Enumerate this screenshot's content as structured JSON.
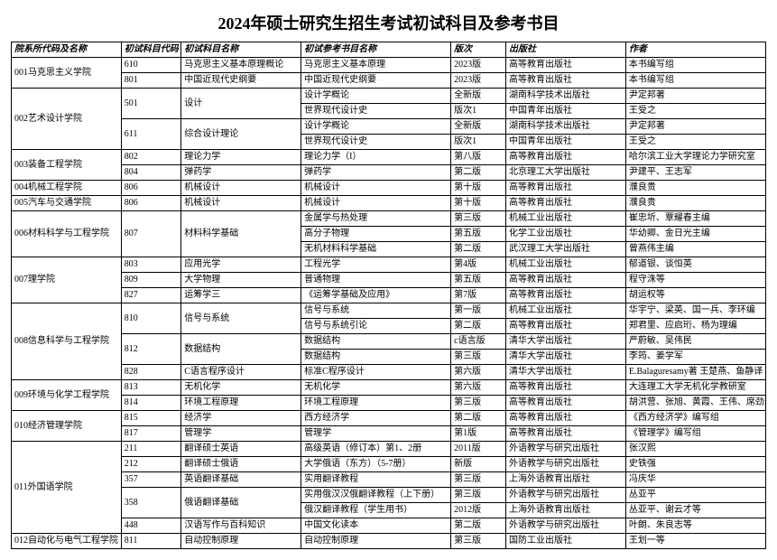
{
  "title": "2024年硕士研究生招生考试初试科目及参考书目",
  "headers": [
    "院系所代码及名称",
    "初试科目代码",
    "初试科目名称",
    "初试参考书目名称",
    "版次",
    "出版社",
    "作者"
  ],
  "colors": {
    "border": "#000000",
    "bg": "#ffffff",
    "text": "#000000"
  },
  "font": {
    "title_size": 18,
    "cell_size": 10,
    "family": "SimSun"
  },
  "rows": [
    {
      "dept": "001马克思主义学院",
      "dept_span": 2,
      "code": "610",
      "code_span": 1,
      "subj": "马克思主义基本原理概论",
      "subj_span": 1,
      "book": "马克思主义基本原理",
      "ed": "2023版",
      "pub": "高等教育出版社",
      "auth": "本书编写组"
    },
    {
      "code": "801",
      "code_span": 1,
      "subj": "中国近现代史纲要",
      "subj_span": 1,
      "book": "中国近现代史纲要",
      "ed": "2023版",
      "pub": "高等教育出版社",
      "auth": "本书编写组"
    },
    {
      "dept": "002艺术设计学院",
      "dept_span": 4,
      "code": "501",
      "code_span": 2,
      "subj": "设计",
      "subj_span": 2,
      "book": "设计学概论",
      "ed": "全新版",
      "pub": "湖南科学技术出版社",
      "auth": "尹定邦著"
    },
    {
      "book": "世界现代设计史",
      "ed": "版次1",
      "pub": "中国青年出版社",
      "auth": "王受之"
    },
    {
      "code": "611",
      "code_span": 2,
      "subj": "综合设计理论",
      "subj_span": 2,
      "book": "设计学概论",
      "ed": "全新版",
      "pub": "湖南科学技术出版社",
      "auth": "尹定邦著"
    },
    {
      "book": "世界现代设计史",
      "ed": "版次1",
      "pub": "中国青年出版社",
      "auth": "王受之"
    },
    {
      "dept": "003装备工程学院",
      "dept_span": 2,
      "code": "802",
      "code_span": 1,
      "subj": "理论力学",
      "subj_span": 1,
      "book": "理论力学（I）",
      "ed": "第八版",
      "pub": "高等教育出版社",
      "auth": "哈尔滨工业大学理论力学研究室"
    },
    {
      "code": "804",
      "code_span": 1,
      "subj": "弹药学",
      "subj_span": 1,
      "book": "弹药学",
      "ed": "第二版",
      "pub": "北京理工大学出版社",
      "auth": "尹建平、王志军"
    },
    {
      "dept": "004机械工程学院",
      "dept_span": 1,
      "code": "806",
      "code_span": 1,
      "subj": "机械设计",
      "subj_span": 1,
      "book": "机械设计",
      "ed": "第十版",
      "pub": "高等教育出版社",
      "auth": "濮良贵"
    },
    {
      "dept": "005汽车与交通学院",
      "dept_span": 1,
      "code": "806",
      "code_span": 1,
      "subj": "机械设计",
      "subj_span": 1,
      "book": "机械设计",
      "ed": "第十版",
      "pub": "高等教育出版社",
      "auth": "濮良贵"
    },
    {
      "dept": "006材料科学与工程学院",
      "dept_span": 3,
      "code": "807",
      "code_span": 3,
      "subj": "材料科学基础",
      "subj_span": 3,
      "book": "金属学与热处理",
      "ed": "第三版",
      "pub": "机械工业出版社",
      "auth": "崔忠圻、覃耀春主编"
    },
    {
      "book": "高分子物理",
      "ed": "第五版",
      "pub": "化学工业出版社",
      "auth": "华幼卿、金日光主编"
    },
    {
      "book": "无机材料科学基础",
      "ed": "第二版",
      "pub": "武汉理工大学出版社",
      "auth": "曾燕伟主编"
    },
    {
      "dept": "007理学院",
      "dept_span": 3,
      "code": "803",
      "code_span": 1,
      "subj": "应用光学",
      "subj_span": 1,
      "book": "工程光学",
      "ed": "第4版",
      "pub": "机械工业出版社",
      "auth": "郁道银、谈恒英"
    },
    {
      "code": "809",
      "code_span": 1,
      "subj": "大学物理",
      "subj_span": 1,
      "book": "普通物理",
      "ed": "第五版",
      "pub": "高等教育出版社",
      "auth": "程守洙等"
    },
    {
      "code": "827",
      "code_span": 1,
      "subj": "运筹学三",
      "subj_span": 1,
      "book": "《运筹学基础及应用》",
      "ed": "第7版",
      "pub": "高等教育出版社",
      "auth": "胡运权等"
    },
    {
      "dept": "008信息科学与工程学院",
      "dept_span": 5,
      "code": "810",
      "code_span": 2,
      "subj": "信号与系统",
      "subj_span": 2,
      "book": "信号与系统",
      "ed": "第一版",
      "pub": "机械工业出版社",
      "auth": "华宇宁、梁英、国一兵、李环编"
    },
    {
      "book": "信号与系统引论",
      "ed": "第二版",
      "pub": "高等教育出版社",
      "auth": "郑君里、应启珩、杨为理编"
    },
    {
      "code": "812",
      "code_span": 2,
      "subj": "数据结构",
      "subj_span": 2,
      "book": "数据结构",
      "ed": "c语言版",
      "pub": "清华大学出版社",
      "auth": "严蔚敏、吴伟民"
    },
    {
      "book": "数据结构",
      "ed": "第三版",
      "pub": "清华大学出版社",
      "auth": "李筠、姜学军"
    },
    {
      "code": "828",
      "code_span": 1,
      "subj": "C语言程序设计",
      "subj_span": 1,
      "book": "标准C程序设计",
      "ed": "第六版",
      "pub": "清华大学出版社",
      "auth": "E.Balaguresamy著 王楚燕、鱼静译"
    },
    {
      "dept": "009环境与化学工程学院",
      "dept_span": 2,
      "code": "813",
      "code_span": 1,
      "subj": "无机化学",
      "subj_span": 1,
      "book": "无机化学",
      "ed": "第六版",
      "pub": "高等教育出版社",
      "auth": "大连理工大学无机化学教研室"
    },
    {
      "code": "814",
      "code_span": 1,
      "subj": "环境工程原理",
      "subj_span": 1,
      "book": "环境工程原理",
      "ed": "第三版",
      "pub": "高等教育出版社",
      "auth": "胡洪营、张旭、黄霞、王伟、席劲瑛 合编"
    },
    {
      "dept": "010经济管理学院",
      "dept_span": 2,
      "code": "815",
      "code_span": 1,
      "subj": "经济学",
      "subj_span": 1,
      "book": "西方经济学",
      "ed": "第二版",
      "pub": "高等教育出版社",
      "auth": "《西方经济学》编写组"
    },
    {
      "code": "817",
      "code_span": 1,
      "subj": "管理学",
      "subj_span": 1,
      "book": "管理学",
      "ed": "第1版",
      "pub": "高等教育出版社",
      "auth": "《管理学》编写组"
    },
    {
      "dept": "011外国语学院",
      "dept_span": 6,
      "code": "211",
      "code_span": 1,
      "subj": "翻译硕士英语",
      "subj_span": 1,
      "book": "高级英语（修订本）第1、2册",
      "ed": "2011版",
      "pub": "外语教学与研究出版社",
      "auth": "张汉熙"
    },
    {
      "code": "212",
      "code_span": 1,
      "subj": "翻译硕士俄语",
      "subj_span": 1,
      "book": "大学俄语（东方）（5-7册）",
      "ed": "新版",
      "pub": "外语教学与研究出版社",
      "auth": "史铁强"
    },
    {
      "code": "357",
      "code_span": 1,
      "subj": "英语翻译基础",
      "subj_span": 1,
      "book": "实用翻译教程",
      "ed": "第三版",
      "pub": "上海外语教育出版社",
      "auth": "冯庆华"
    },
    {
      "code": "358",
      "code_span": 2,
      "subj": "俄语翻译基础",
      "subj_span": 2,
      "book": "实用俄汉汉俄翻译教程（上下册）",
      "ed": "第三版",
      "pub": "外语教学与研究出版社",
      "auth": "丛亚平"
    },
    {
      "book": "俄汉翻译教程（学生用书）",
      "ed": "2012版",
      "pub": "上海外语教育出版社",
      "auth": "丛亚平、谢云才等"
    },
    {
      "code": "448",
      "code_span": 1,
      "subj": "汉语写作与百科知识",
      "subj_span": 1,
      "book": "中国文化读本",
      "ed": "第二版",
      "pub": "外语教学与研究出版社",
      "auth": "叶朗、朱良志等"
    },
    {
      "dept": "012自动化与电气工程学院",
      "dept_span": 1,
      "code": "811",
      "code_span": 1,
      "subj": "自动控制原理",
      "subj_span": 1,
      "book": "自动控制原理",
      "ed": "第三版",
      "pub": "国防工业出版社",
      "auth": "王划一等"
    }
  ]
}
